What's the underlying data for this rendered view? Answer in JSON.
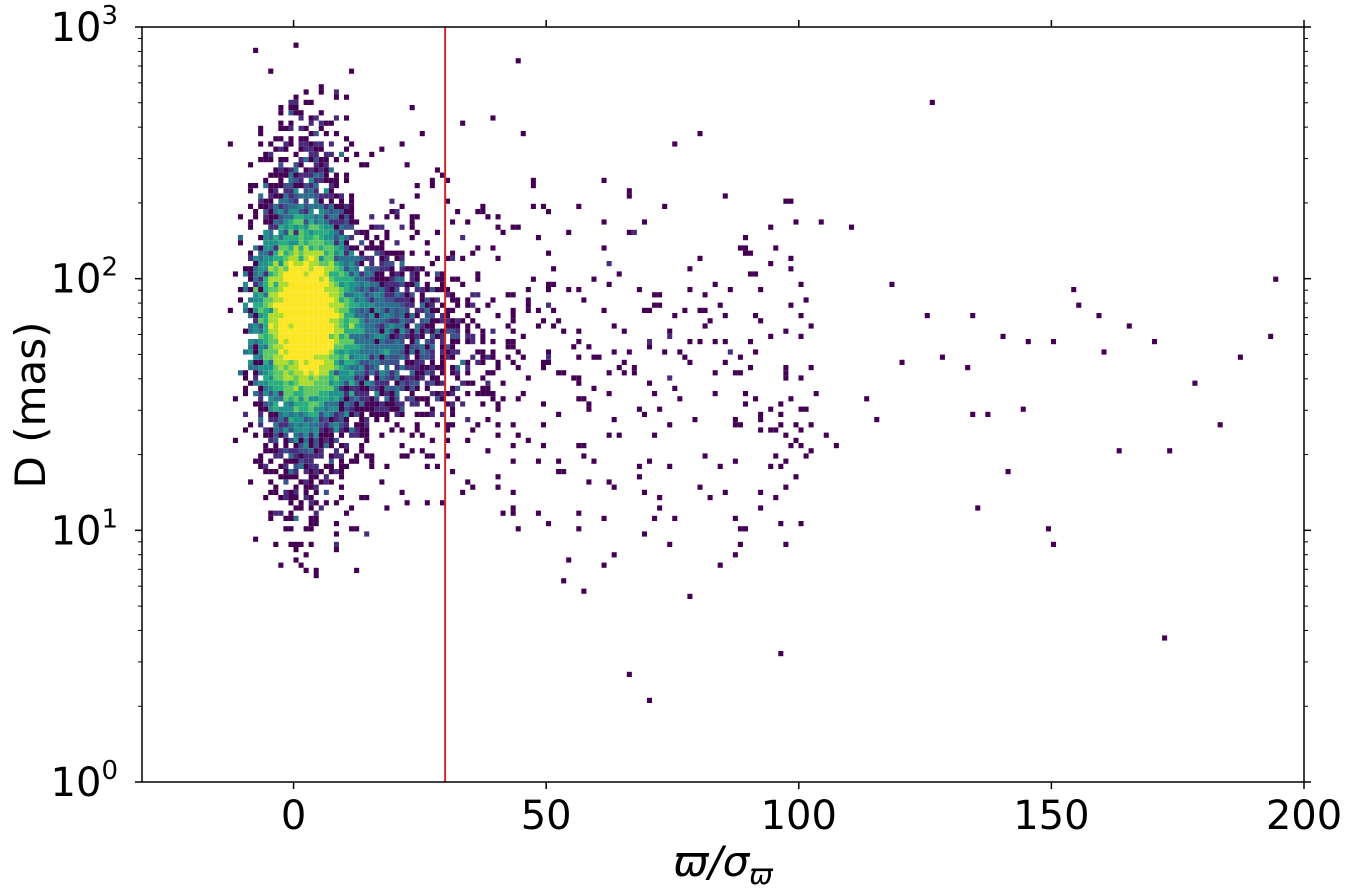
{
  "chart_data": {
    "type": "heatmap",
    "subtype": "2d-histogram",
    "title": "",
    "xlabel": "ϖ/σ",
    "xlabel_subscript": "ϖ",
    "ylabel": "D (mas)",
    "xlim": [
      -30,
      200
    ],
    "ylim": [
      1,
      1000
    ],
    "yscale": "log",
    "grid": false,
    "colormap": "viridis",
    "xticks": [
      0,
      50,
      100,
      150,
      200
    ],
    "xtick_labels": [
      "0",
      "50",
      "100",
      "150",
      "200"
    ],
    "yticks": [
      1,
      10,
      100,
      1000
    ],
    "ytick_labels": [
      {
        "base": "10",
        "exp": "0"
      },
      {
        "base": "10",
        "exp": "1"
      },
      {
        "base": "10",
        "exp": "2"
      },
      {
        "base": "10",
        "exp": "3"
      }
    ],
    "reference_line": {
      "axis": "x",
      "value": 30,
      "color": "#d62728"
    },
    "density_core": {
      "x_center": 2,
      "y_center": 70
    },
    "sparse_points": [
      [
        126,
        500
      ],
      [
        110,
        160
      ],
      [
        104,
        170
      ],
      [
        94,
        160
      ],
      [
        118,
        95
      ],
      [
        125,
        70
      ],
      [
        134,
        70
      ],
      [
        140,
        60
      ],
      [
        145,
        55
      ],
      [
        150,
        55
      ],
      [
        154,
        90
      ],
      [
        155,
        80
      ],
      [
        159,
        70
      ],
      [
        160,
        50
      ],
      [
        165,
        65
      ],
      [
        170,
        55
      ],
      [
        178,
        38
      ],
      [
        183,
        26
      ],
      [
        187,
        48
      ],
      [
        193,
        60
      ],
      [
        194,
        100
      ],
      [
        173,
        21
      ],
      [
        163,
        21
      ],
      [
        149,
        10
      ],
      [
        150,
        9
      ],
      [
        135,
        12
      ],
      [
        141,
        17
      ],
      [
        144,
        31
      ],
      [
        133,
        45
      ],
      [
        128,
        48
      ],
      [
        137,
        29
      ],
      [
        134,
        29
      ],
      [
        120,
        47
      ],
      [
        107,
        22
      ],
      [
        105,
        24
      ],
      [
        94,
        30
      ],
      [
        97,
        9
      ],
      [
        96,
        3.2
      ],
      [
        88,
        10
      ],
      [
        80,
        15
      ],
      [
        84,
        18
      ],
      [
        78,
        5.5
      ],
      [
        72,
        12
      ],
      [
        66,
        2.7
      ],
      [
        70,
        2.1
      ],
      [
        172,
        3.7
      ],
      [
        85,
        70
      ],
      [
        86,
        50
      ],
      [
        90,
        45
      ],
      [
        100,
        40
      ],
      [
        103,
        35
      ],
      [
        113,
        33
      ],
      [
        115,
        27
      ],
      [
        98,
        80
      ],
      [
        92,
        90
      ],
      [
        81,
        85
      ],
      [
        75,
        70
      ],
      [
        68,
        90
      ],
      [
        62,
        115
      ],
      [
        66,
        225
      ]
    ]
  }
}
